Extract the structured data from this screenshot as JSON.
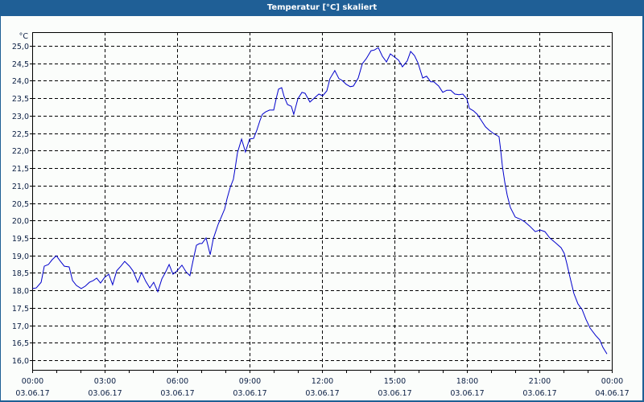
{
  "window": {
    "title": "Temperatur [°C] skaliert",
    "colors": {
      "titlebar": "#1f5f96",
      "background": "#fbfdfb",
      "line": "#0000cc",
      "grid": "#000000",
      "label": "#0b1f44"
    }
  },
  "chart_data": {
    "type": "line",
    "title": "Temperatur [°C] skaliert",
    "xlabel": "",
    "ylabel": "°C",
    "x_unit": "hours since 03.06.17 00:00",
    "xlim": [
      0,
      24
    ],
    "ylim": [
      15.72,
      25.39
    ],
    "grid": true,
    "legend": null,
    "y_ticks": [
      "16,0",
      "16,5",
      "17,0",
      "17,5",
      "18,0",
      "18,5",
      "19,0",
      "19,5",
      "20,0",
      "20,5",
      "21,0",
      "21,5",
      "22,0",
      "22,5",
      "23,0",
      "23,5",
      "24,0",
      "24,5",
      "25,0"
    ],
    "y_tick_values": [
      16.0,
      16.5,
      17.0,
      17.5,
      18.0,
      18.5,
      19.0,
      19.5,
      20.0,
      20.5,
      21.0,
      21.5,
      22.0,
      22.5,
      23.0,
      23.5,
      24.0,
      24.5,
      25.0
    ],
    "x_ticks": [
      {
        "hour": 0,
        "time": "00:00",
        "date": "03.06.17"
      },
      {
        "hour": 3,
        "time": "03:00",
        "date": "03.06.17"
      },
      {
        "hour": 6,
        "time": "06:00",
        "date": "03.06.17"
      },
      {
        "hour": 9,
        "time": "09:00",
        "date": "03.06.17"
      },
      {
        "hour": 12,
        "time": "12:00",
        "date": "03.06.17"
      },
      {
        "hour": 15,
        "time": "15:00",
        "date": "03.06.17"
      },
      {
        "hour": 18,
        "time": "18:00",
        "date": "03.06.17"
      },
      {
        "hour": 21,
        "time": "21:00",
        "date": "03.06.17"
      },
      {
        "hour": 24,
        "time": "00:00",
        "date": "04.06.17"
      }
    ],
    "series": [
      {
        "name": "Temperatur",
        "color": "#0000cc",
        "x": [
          0.02,
          0.17,
          0.37,
          0.5,
          0.67,
          0.83,
          1.0,
          1.17,
          1.33,
          1.53,
          1.67,
          1.83,
          2.03,
          2.2,
          2.37,
          2.53,
          2.67,
          2.83,
          3.0,
          3.17,
          3.33,
          3.5,
          3.67,
          3.83,
          4.03,
          4.17,
          4.37,
          4.53,
          4.7,
          4.87,
          5.03,
          5.2,
          5.37,
          5.5,
          5.67,
          5.83,
          6.0,
          6.2,
          6.37,
          6.53,
          6.67,
          6.8,
          6.93,
          7.03,
          7.2,
          7.37,
          7.5,
          7.7,
          7.83,
          7.97,
          8.07,
          8.2,
          8.33,
          8.4,
          8.5,
          8.67,
          8.83,
          9.0,
          9.17,
          9.3,
          9.43,
          9.53,
          9.67,
          9.83,
          10.0,
          10.1,
          10.2,
          10.33,
          10.43,
          10.57,
          10.73,
          10.83,
          11.0,
          11.17,
          11.3,
          11.5,
          11.67,
          11.87,
          12.03,
          12.2,
          12.33,
          12.53,
          12.7,
          12.83,
          13.0,
          13.17,
          13.3,
          13.5,
          13.67,
          13.83,
          14.03,
          14.17,
          14.33,
          14.5,
          14.67,
          14.83,
          15.0,
          15.17,
          15.33,
          15.53,
          15.67,
          15.83,
          15.97,
          16.17,
          16.33,
          16.5,
          16.63,
          16.83,
          17.0,
          17.17,
          17.33,
          17.5,
          17.67,
          17.83,
          18.0,
          18.1,
          18.27,
          18.43,
          18.6,
          18.77,
          18.93,
          19.1,
          19.33,
          19.4,
          19.47,
          19.57,
          19.67,
          19.8,
          20.0,
          20.23,
          20.4,
          20.6,
          20.83,
          21.03,
          21.23,
          21.43,
          21.67,
          21.9,
          22.03,
          22.13,
          22.27,
          22.43,
          22.6,
          22.77,
          22.93,
          23.1,
          23.33,
          23.5,
          23.63,
          23.8
        ],
        "values": [
          18.05,
          18.07,
          18.23,
          18.69,
          18.74,
          18.88,
          18.99,
          18.83,
          18.69,
          18.67,
          18.28,
          18.14,
          18.05,
          18.12,
          18.23,
          18.28,
          18.35,
          18.21,
          18.37,
          18.46,
          18.16,
          18.56,
          18.69,
          18.83,
          18.69,
          18.56,
          18.23,
          18.51,
          18.26,
          18.07,
          18.23,
          17.96,
          18.33,
          18.49,
          18.74,
          18.46,
          18.56,
          18.72,
          18.53,
          18.42,
          18.88,
          19.29,
          19.34,
          19.34,
          19.5,
          19.02,
          19.48,
          19.89,
          20.1,
          20.33,
          20.63,
          20.95,
          21.18,
          21.48,
          21.94,
          22.33,
          21.96,
          22.33,
          22.35,
          22.58,
          22.86,
          23.04,
          23.11,
          23.16,
          23.16,
          23.48,
          23.76,
          23.8,
          23.55,
          23.32,
          23.27,
          23.04,
          23.48,
          23.67,
          23.64,
          23.39,
          23.5,
          23.62,
          23.57,
          23.71,
          24.06,
          24.29,
          24.06,
          24.01,
          23.9,
          23.83,
          23.85,
          24.08,
          24.49,
          24.63,
          24.86,
          24.88,
          24.95,
          24.7,
          24.54,
          24.77,
          24.68,
          24.59,
          24.4,
          24.57,
          24.84,
          24.72,
          24.52,
          24.08,
          24.13,
          23.97,
          23.97,
          23.85,
          23.67,
          23.73,
          23.73,
          23.62,
          23.6,
          23.62,
          23.48,
          23.21,
          23.14,
          23.04,
          22.86,
          22.68,
          22.58,
          22.49,
          22.4,
          22.01,
          21.55,
          21.09,
          20.72,
          20.37,
          20.1,
          20.03,
          19.96,
          19.84,
          19.68,
          19.73,
          19.68,
          19.5,
          19.36,
          19.22,
          19.06,
          18.79,
          18.37,
          17.91,
          17.61,
          17.45,
          17.17,
          16.92,
          16.71,
          16.58,
          16.37,
          16.18
        ]
      }
    ]
  }
}
